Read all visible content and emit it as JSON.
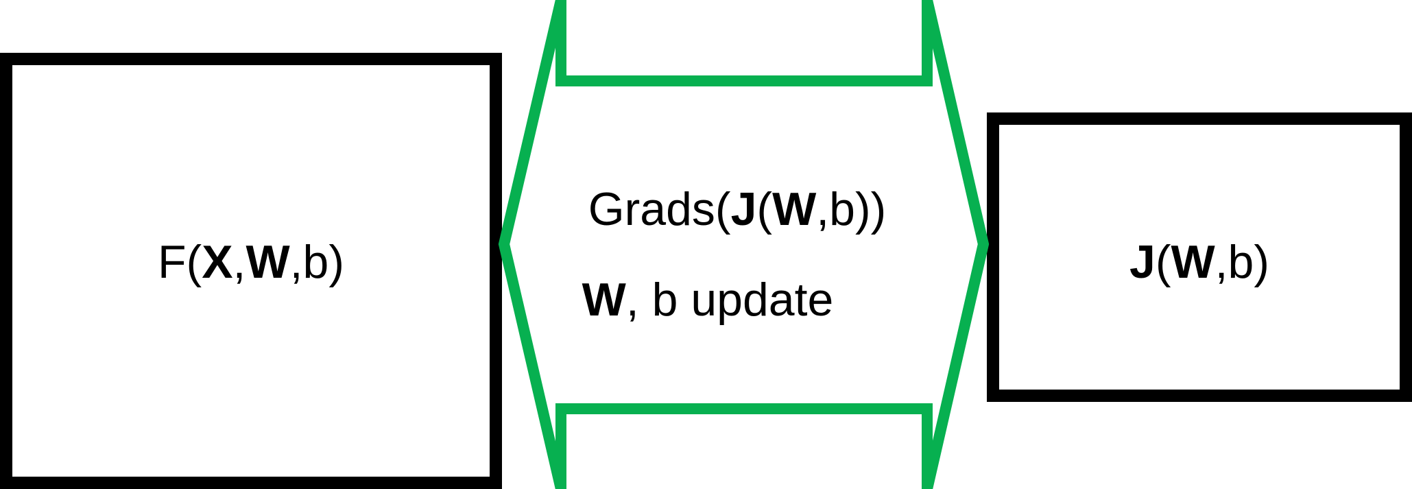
{
  "diagram": {
    "left_box": {
      "label": {
        "p1": "F(",
        "p2": "X",
        "p3": ",",
        "p4": "W",
        "p5": ",b)"
      }
    },
    "right_box": {
      "label": {
        "p1": "J",
        "p2": "(",
        "p3": "W",
        "p4": ",b)"
      }
    },
    "middle_arrow": {
      "line1": {
        "p1": "Grads(",
        "p2": "J",
        "p3": "(",
        "p4": "W",
        "p5": ",b))"
      },
      "line2": {
        "p1": "W",
        "p2": ", b update"
      }
    }
  },
  "colors": {
    "box_stroke": "#000000",
    "arrow_stroke": "#07b050",
    "text": "#000000",
    "background": "#ffffff"
  }
}
